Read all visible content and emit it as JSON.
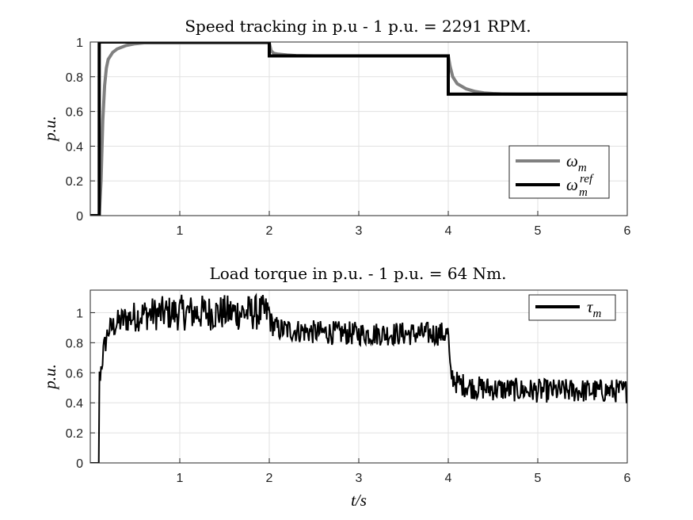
{
  "chart_data": [
    {
      "type": "line",
      "title": "Speed tracking in p.u - 1 p.u. = 2291 RPM.",
      "xlabel": "",
      "ylabel": "p.u.",
      "xlim": [
        0,
        6
      ],
      "ylim": [
        0,
        1
      ],
      "xticks": [
        1,
        2,
        3,
        4,
        5,
        6
      ],
      "yticks": [
        0,
        0.2,
        0.4,
        0.6,
        0.8,
        1
      ],
      "grid": true,
      "legend": "right",
      "series": [
        {
          "name": "ω_m",
          "legend_main": "ω",
          "legend_sub": "m",
          "legend_sup": "",
          "color": "#808080",
          "x": [
            0,
            0.1,
            0.12,
            0.14,
            0.16,
            0.18,
            0.2,
            0.25,
            0.3,
            0.4,
            0.5,
            0.6,
            0.8,
            1.0,
            1.5,
            2.0,
            2.02,
            2.05,
            2.1,
            2.2,
            2.3,
            2.5,
            3.0,
            3.5,
            4.0,
            4.02,
            4.05,
            4.1,
            4.2,
            4.3,
            4.4,
            4.5,
            4.6,
            4.8,
            5.0,
            6.0
          ],
          "y": [
            0,
            0,
            0.2,
            0.55,
            0.75,
            0.85,
            0.9,
            0.94,
            0.96,
            0.98,
            0.99,
            0.995,
            0.995,
            0.995,
            0.995,
            0.995,
            0.95,
            0.935,
            0.93,
            0.925,
            0.922,
            0.92,
            0.92,
            0.92,
            0.92,
            0.86,
            0.8,
            0.76,
            0.73,
            0.715,
            0.707,
            0.703,
            0.701,
            0.7,
            0.7,
            0.7
          ]
        },
        {
          "name": "ω_m^ref",
          "legend_main": "ω",
          "legend_sub": "m",
          "legend_sup": "ref",
          "color": "#000000",
          "x": [
            0,
            0.1,
            0.1,
            2.0,
            2.0,
            4.0,
            4.0,
            6.0
          ],
          "y": [
            0,
            0,
            1.0,
            1.0,
            0.92,
            0.92,
            0.7,
            0.7
          ]
        }
      ]
    },
    {
      "type": "line",
      "title": "Load torque in p.u. - 1 p.u. = 64 Nm.",
      "xlabel": "t/s",
      "ylabel": "p.u.",
      "xlim": [
        0,
        6
      ],
      "ylim": [
        0,
        1.15
      ],
      "xticks": [
        1,
        2,
        3,
        4,
        5,
        6
      ],
      "yticks": [
        0,
        0.2,
        0.4,
        0.6,
        0.8,
        1
      ],
      "grid": true,
      "legend": "top-right",
      "series": [
        {
          "name": "τ_m",
          "legend_main": "τ",
          "legend_sub": "m",
          "legend_sup": "",
          "color": "#000000",
          "noise": true,
          "x": [
            0,
            0.1,
            0.1,
            0.15,
            0.2,
            0.3,
            0.4,
            0.6,
            1.0,
            1.5,
            2.0,
            2.02,
            2.1,
            2.5,
            3.0,
            3.5,
            4.0,
            4.02,
            4.1,
            4.3,
            4.6,
            5.0,
            6.0
          ],
          "y": [
            0,
            0,
            0.55,
            0.75,
            0.88,
            0.93,
            0.96,
            0.99,
            1.0,
            1.0,
            1.0,
            0.93,
            0.89,
            0.87,
            0.86,
            0.86,
            0.86,
            0.6,
            0.53,
            0.5,
            0.49,
            0.48,
            0.48
          ],
          "band": [
            0,
            0,
            0.08,
            0.08,
            0.08,
            0.09,
            0.1,
            0.11,
            0.12,
            0.12,
            0.12,
            0.08,
            0.08,
            0.08,
            0.08,
            0.08,
            0.08,
            0.08,
            0.08,
            0.08,
            0.08,
            0.08,
            0.08
          ]
        }
      ]
    }
  ]
}
